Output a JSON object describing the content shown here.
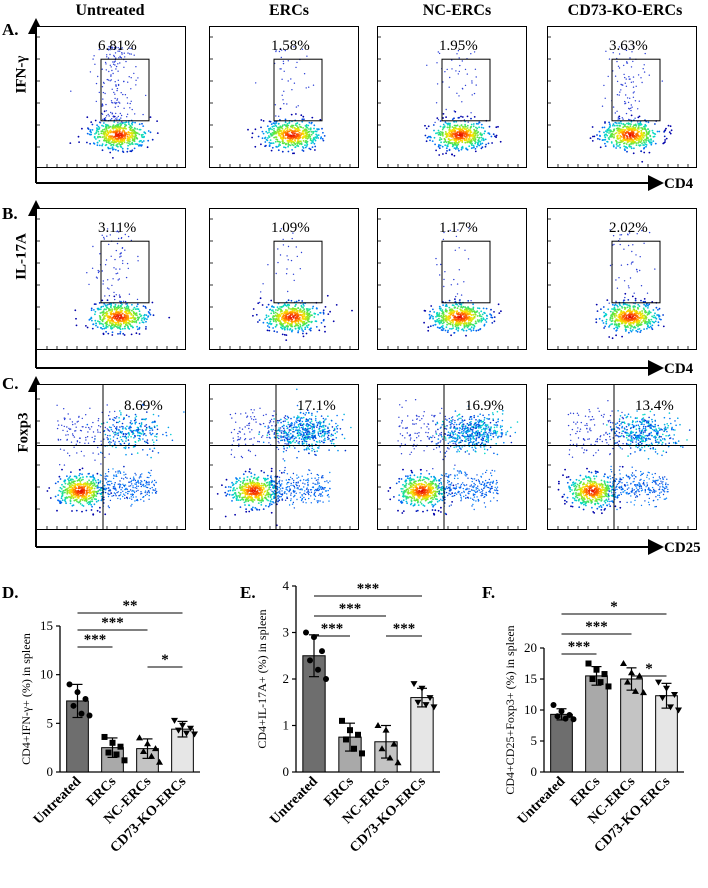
{
  "columns": [
    "Untreated",
    "ERCs",
    "NC-ERCs",
    "CD73-KO-ERCs"
  ],
  "flow_rows": [
    {
      "label": "A.",
      "y_axis": "IFN-γ",
      "x_axis": "CD4",
      "gate": "upper",
      "percents": [
        "6.81%",
        "1.58%",
        "1.95%",
        "3.63%"
      ]
    },
    {
      "label": "B.",
      "y_axis": "IL-17A",
      "x_axis": "CD4",
      "gate": "upper",
      "percents": [
        "3.11%",
        "1.09%",
        "1.17%",
        "2.02%"
      ]
    },
    {
      "label": "C.",
      "y_axis": "Foxp3",
      "x_axis": "CD25",
      "gate": "quadrant",
      "percents": [
        "8.69%",
        "17.1%",
        "16.9%",
        "13.4%"
      ]
    }
  ],
  "colors": {
    "untreated": "#6e6e6e",
    "ercs": "#a9a9a9",
    "nc_ercs": "#c4c4c4",
    "cd73": "#e6e6e6"
  },
  "chart_data": [
    {
      "type": "bar",
      "panel_label": "D.",
      "title": "",
      "categories": [
        "Untreated",
        "ERCs",
        "NC-ERCs",
        "CD73-KO-ERCs"
      ],
      "values": [
        7.3,
        2.5,
        2.4,
        4.4
      ],
      "errors": [
        1.7,
        1.0,
        1.0,
        0.8
      ],
      "points": [
        [
          9.0,
          8.2,
          7.5,
          6.8,
          6.0,
          5.8
        ],
        [
          3.6,
          3.0,
          2.6,
          2.0,
          1.8,
          1.2
        ],
        [
          3.5,
          2.9,
          2.4,
          2.1,
          1.6,
          1.0
        ],
        [
          5.3,
          4.8,
          4.5,
          4.3,
          4.0,
          3.9
        ]
      ],
      "xlabel": "",
      "ylabel": "CD4+IFN-γ+ (%) in spleen",
      "ylim": [
        0,
        15
      ],
      "yticks": [
        "0",
        "5",
        "10",
        "15"
      ],
      "significance": [
        {
          "from": 0,
          "to": 3,
          "label": "**"
        },
        {
          "from": 0,
          "to": 2,
          "label": "***"
        },
        {
          "from": 0,
          "to": 1,
          "label": "***"
        },
        {
          "from": 2,
          "to": 3,
          "label": "*"
        }
      ]
    },
    {
      "type": "bar",
      "panel_label": "E.",
      "title": "",
      "categories": [
        "Untreated",
        "ERCs",
        "NC-ERCs",
        "CD73-KO-ERCs"
      ],
      "values": [
        2.5,
        0.75,
        0.65,
        1.6
      ],
      "errors": [
        0.45,
        0.3,
        0.35,
        0.2
      ],
      "points": [
        [
          3.0,
          2.9,
          2.6,
          2.4,
          2.2,
          2.0
        ],
        [
          1.1,
          0.9,
          0.8,
          0.7,
          0.5,
          0.4
        ],
        [
          1.0,
          0.9,
          0.6,
          0.5,
          0.3,
          0.2
        ],
        [
          1.9,
          1.8,
          1.6,
          1.5,
          1.45,
          1.4
        ]
      ],
      "xlabel": "",
      "ylabel": "CD4+IL-17A+ (%) in spleen",
      "ylim": [
        0,
        4
      ],
      "yticks": [
        "0",
        "1",
        "2",
        "3",
        "4"
      ],
      "significance": [
        {
          "from": 0,
          "to": 3,
          "label": "***"
        },
        {
          "from": 0,
          "to": 2,
          "label": "***"
        },
        {
          "from": 0,
          "to": 1,
          "label": "***"
        },
        {
          "from": 2,
          "to": 3,
          "label": "***"
        }
      ]
    },
    {
      "type": "bar",
      "panel_label": "F.",
      "title": "",
      "categories": [
        "Untreated",
        "ERCs",
        "NC-ERCs",
        "CD73-KO-ERCs"
      ],
      "values": [
        9.3,
        15.5,
        15.0,
        12.3
      ],
      "errors": [
        0.9,
        1.5,
        1.8,
        2.0
      ],
      "points": [
        [
          10.8,
          9.8,
          9.2,
          9.0,
          8.6,
          8.5
        ],
        [
          17.5,
          16.5,
          15.8,
          15.0,
          14.5,
          13.8
        ],
        [
          17.5,
          16.0,
          15.5,
          14.5,
          13.0,
          12.8
        ],
        [
          14.5,
          13.5,
          12.5,
          12.0,
          10.5,
          10.0
        ]
      ],
      "xlabel": "",
      "ylabel": "CD4+CD25+Foxp3+ (%) in spleen",
      "ylim": [
        0,
        20
      ],
      "yticks": [
        "0",
        "5",
        "10",
        "15",
        "20"
      ],
      "significance": [
        {
          "from": 0,
          "to": 3,
          "label": "*"
        },
        {
          "from": 0,
          "to": 2,
          "label": "***"
        },
        {
          "from": 0,
          "to": 1,
          "label": "***"
        },
        {
          "from": 2,
          "to": 3,
          "label": "*"
        }
      ]
    }
  ]
}
